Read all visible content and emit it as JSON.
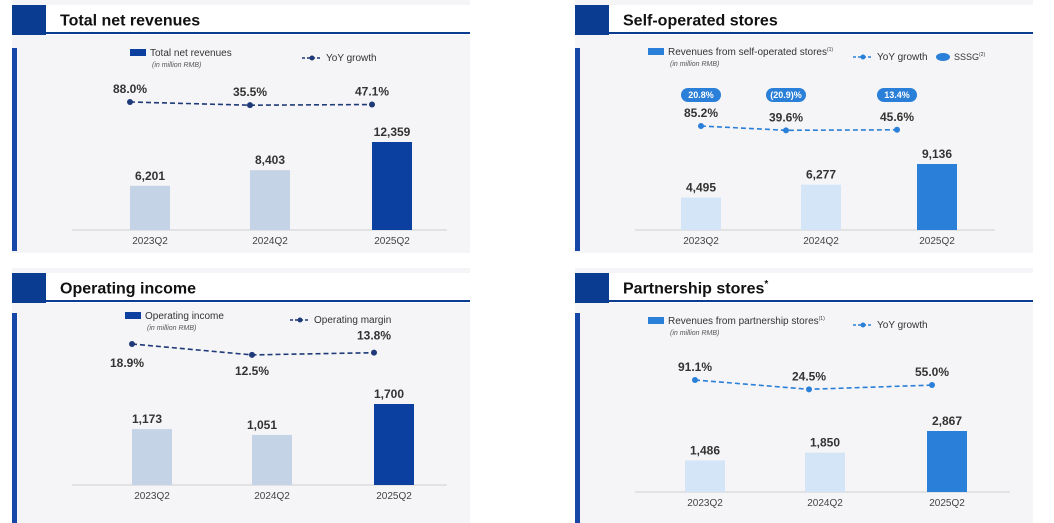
{
  "panels": [
    {
      "title": "Total net revenues",
      "title_sup": "",
      "legend_bar": "Total net revenues",
      "legend_bar_sup": "",
      "legend_unit": "(in million RMB)",
      "legend_line": "YoY growth",
      "legend_pill": "",
      "legend_pill_sup": ""
    },
    {
      "title": "Self-operated stores",
      "title_sup": "",
      "legend_bar": "Revenues from self-operated stores",
      "legend_bar_sup": "(1)",
      "legend_unit": "(in million RMB)",
      "legend_line": "YoY growth",
      "legend_pill": "SSSG",
      "legend_pill_sup": "(2)"
    },
    {
      "title": "Operating income",
      "title_sup": "",
      "legend_bar": "Operating income",
      "legend_bar_sup": "",
      "legend_unit": "(in million RMB)",
      "legend_line": "Operating margin",
      "legend_pill": "",
      "legend_pill_sup": ""
    },
    {
      "title": "Partnership stores",
      "title_sup": "*",
      "legend_bar": "Revenues from partnership stores",
      "legend_bar_sup": "(1)",
      "legend_unit": "(in million RMB)",
      "legend_line": "YoY growth",
      "legend_pill": "",
      "legend_pill_sup": ""
    }
  ],
  "colors": {
    "navy": "#0a3d91",
    "navy_bar": "#0b3fa0",
    "blue_bar": "#2a7fd8",
    "pale_navy_bar": "#c5d3e7",
    "pale_blue_bar": "#d4e5f7",
    "line_navy": "#1f3a78",
    "line_blue": "#2a7fd8",
    "pill": "#2a7fd8"
  },
  "chart_data": [
    {
      "type": "bar",
      "title": "Total net revenues",
      "categories": [
        "2023Q2",
        "2024Q2",
        "2025Q2"
      ],
      "series": [
        {
          "name": "Total net revenues",
          "values": [
            6201,
            8403,
            12359
          ],
          "labels": [
            "6,201",
            "8,403",
            "12,359"
          ]
        },
        {
          "name": "YoY growth",
          "type": "line",
          "values": [
            88.0,
            35.5,
            47.1
          ],
          "labels": [
            "88.0%",
            "35.5%",
            "47.1%"
          ]
        }
      ],
      "ylim": [
        0,
        12359
      ]
    },
    {
      "type": "bar",
      "title": "Self-operated stores",
      "categories": [
        "2023Q2",
        "2024Q2",
        "2025Q2"
      ],
      "series": [
        {
          "name": "Revenues from self-operated stores",
          "values": [
            4495,
            6277,
            9136
          ],
          "labels": [
            "4,495",
            "6,277",
            "9,136"
          ]
        },
        {
          "name": "YoY growth",
          "type": "line",
          "values": [
            85.2,
            39.6,
            45.6
          ],
          "labels": [
            "85.2%",
            "39.6%",
            "45.6%"
          ]
        },
        {
          "name": "SSSG",
          "type": "annotation",
          "values": [
            20.8,
            -20.9,
            13.4
          ],
          "labels": [
            "20.8%",
            "(20.9)%",
            "13.4%"
          ]
        }
      ],
      "ylim": [
        0,
        9136
      ]
    },
    {
      "type": "bar",
      "title": "Operating income",
      "categories": [
        "2023Q2",
        "2024Q2",
        "2025Q2"
      ],
      "series": [
        {
          "name": "Operating income",
          "values": [
            1173,
            1051,
            1700
          ],
          "labels": [
            "1,173",
            "1,051",
            "1,700"
          ]
        },
        {
          "name": "Operating margin",
          "type": "line",
          "values": [
            18.9,
            12.5,
            13.8
          ],
          "labels": [
            "18.9%",
            "12.5%",
            "13.8%"
          ]
        }
      ],
      "ylim": [
        0,
        1700
      ]
    },
    {
      "type": "bar",
      "title": "Partnership stores",
      "categories": [
        "2023Q2",
        "2024Q2",
        "2025Q2"
      ],
      "series": [
        {
          "name": "Revenues from partnership stores",
          "values": [
            1486,
            1850,
            2867
          ],
          "labels": [
            "1,486",
            "1,850",
            "2,867"
          ]
        },
        {
          "name": "YoY growth",
          "type": "line",
          "values": [
            91.1,
            24.5,
            55.0
          ],
          "labels": [
            "91.1%",
            "24.5%",
            "55.0%"
          ]
        }
      ],
      "ylim": [
        0,
        2867
      ]
    }
  ]
}
